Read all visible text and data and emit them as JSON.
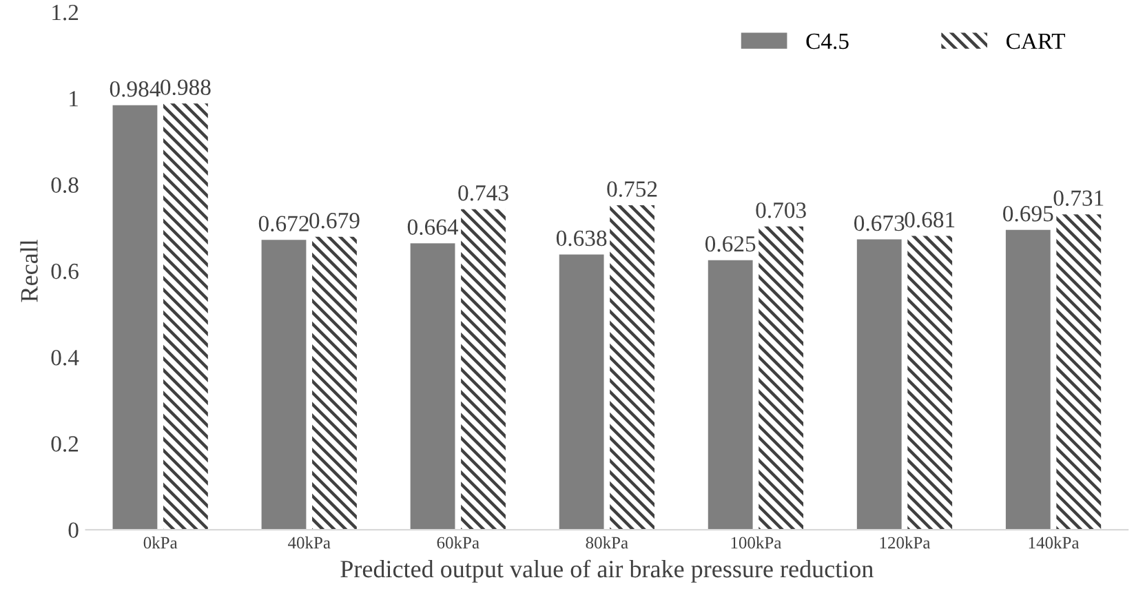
{
  "chart_data": {
    "type": "bar",
    "xlabel": "Predicted output value of air brake pressure reduction",
    "ylabel": "Recall",
    "categories": [
      "0kPa",
      "40kPa",
      "60kPa",
      "80kPa",
      "100kPa",
      "120kPa",
      "140kPa"
    ],
    "series": [
      {
        "name": "C4.5",
        "color": "#7f7f7f",
        "values": [
          0.984,
          0.672,
          0.664,
          0.638,
          0.625,
          0.673,
          0.695
        ]
      },
      {
        "name": "CART",
        "color": "#404040",
        "values": [
          0.988,
          0.679,
          0.743,
          0.752,
          0.703,
          0.681,
          0.731
        ]
      }
    ],
    "ylim": [
      0,
      1.2
    ],
    "yticks": [
      0,
      0.2,
      0.4,
      0.6,
      0.8,
      1,
      1.2
    ],
    "grid": false,
    "legend": "top right",
    "data_labels": true
  }
}
